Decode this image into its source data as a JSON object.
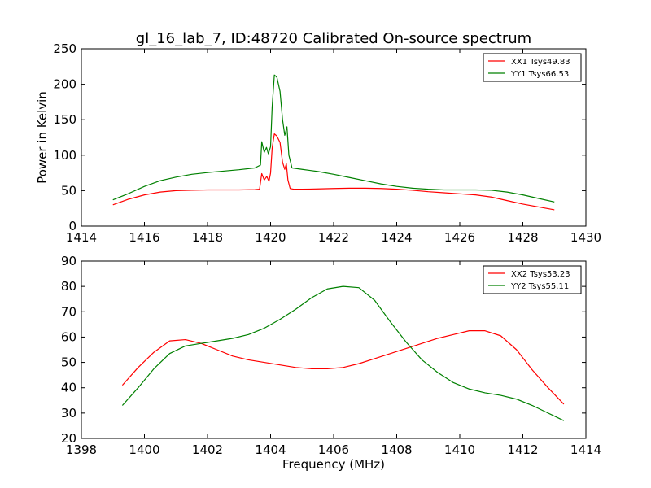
{
  "title": "gl_16_lab_7, ID:48720 Calibrated On-source spectrum",
  "chart_data": [
    {
      "type": "line",
      "title": "gl_16_lab_7, ID:48720 Calibrated On-source spectrum",
      "xlabel": "",
      "ylabel": "Power in Kelvin",
      "xlim": [
        1414,
        1430
      ],
      "ylim": [
        0,
        250
      ],
      "xticks": [
        1414,
        1416,
        1418,
        1420,
        1422,
        1424,
        1426,
        1428,
        1430
      ],
      "yticks": [
        0,
        50,
        100,
        150,
        200,
        250
      ],
      "grid": false,
      "legend_position": "top-right",
      "series": [
        {
          "name": "XX1 Tsys49.83",
          "color": "#ff0000",
          "x": [
            1415.0,
            1415.5,
            1416.0,
            1416.5,
            1417.0,
            1417.5,
            1418.0,
            1418.5,
            1419.0,
            1419.5,
            1419.65,
            1419.72,
            1419.8,
            1419.88,
            1419.95,
            1420.0,
            1420.05,
            1420.12,
            1420.2,
            1420.3,
            1420.38,
            1420.45,
            1420.5,
            1420.55,
            1420.62,
            1420.75,
            1421.0,
            1421.5,
            1422.0,
            1422.5,
            1423.0,
            1423.5,
            1424.0,
            1424.5,
            1425.0,
            1425.5,
            1426.0,
            1426.5,
            1427.0,
            1427.5,
            1428.0,
            1428.5,
            1429.0
          ],
          "y": [
            30,
            38,
            44,
            48,
            50,
            50.5,
            51,
            51,
            51,
            51.5,
            52,
            74,
            65,
            70,
            63,
            75,
            110,
            130,
            127,
            118,
            90,
            80,
            88,
            65,
            53,
            52,
            52,
            52.5,
            53,
            53.5,
            53.5,
            53,
            52,
            50.5,
            48.5,
            47,
            45.5,
            44,
            41,
            36,
            31,
            27,
            23
          ]
        },
        {
          "name": "YY1 Tsys66.53",
          "color": "#008000",
          "x": [
            1415.0,
            1415.5,
            1416.0,
            1416.5,
            1417.0,
            1417.5,
            1418.0,
            1418.5,
            1419.0,
            1419.5,
            1419.68,
            1419.72,
            1419.8,
            1419.87,
            1419.93,
            1420.0,
            1420.05,
            1420.12,
            1420.2,
            1420.3,
            1420.38,
            1420.45,
            1420.52,
            1420.58,
            1420.68,
            1421.0,
            1421.5,
            1422.0,
            1422.5,
            1423.0,
            1423.5,
            1424.0,
            1424.5,
            1425.0,
            1425.5,
            1426.0,
            1426.5,
            1427.0,
            1427.5,
            1428.0,
            1428.5,
            1429.0
          ],
          "y": [
            37,
            46,
            56,
            64,
            69,
            73,
            75.5,
            77.5,
            79.5,
            82,
            86,
            119,
            104,
            111,
            102,
            112,
            168,
            213,
            210,
            190,
            150,
            128,
            140,
            100,
            82,
            80,
            77,
            73,
            68.5,
            64,
            59.5,
            56,
            53.5,
            52,
            51,
            51,
            51,
            50.5,
            48,
            44,
            39,
            34
          ]
        }
      ]
    },
    {
      "type": "line",
      "title": "",
      "xlabel": "Frequency (MHz)",
      "ylabel": "",
      "xlim": [
        1398,
        1414
      ],
      "ylim": [
        20,
        90
      ],
      "xticks": [
        1398,
        1400,
        1402,
        1404,
        1406,
        1408,
        1410,
        1412,
        1414
      ],
      "yticks": [
        20,
        30,
        40,
        50,
        60,
        70,
        80,
        90
      ],
      "grid": false,
      "legend_position": "top-right",
      "series": [
        {
          "name": "XX2 Tsys53.23",
          "color": "#ff0000",
          "x": [
            1399.3,
            1399.8,
            1400.3,
            1400.8,
            1401.3,
            1401.8,
            1402.3,
            1402.8,
            1403.3,
            1403.8,
            1404.3,
            1404.8,
            1405.3,
            1405.8,
            1406.3,
            1406.8,
            1407.3,
            1407.8,
            1408.3,
            1408.8,
            1409.3,
            1409.8,
            1410.3,
            1410.8,
            1411.3,
            1411.8,
            1412.3,
            1412.8,
            1413.3
          ],
          "y": [
            41,
            48,
            54,
            58.5,
            59,
            57.5,
            55,
            52.5,
            51,
            50,
            49,
            48,
            47.5,
            47.5,
            48,
            49.5,
            51.5,
            53.5,
            55.5,
            57.5,
            59.5,
            61,
            62.5,
            62.5,
            60.5,
            55,
            47,
            40,
            33.5
          ]
        },
        {
          "name": "YY2 Tsys55.11",
          "color": "#008000",
          "x": [
            1399.3,
            1399.8,
            1400.3,
            1400.8,
            1401.3,
            1401.8,
            1402.3,
            1402.8,
            1403.3,
            1403.8,
            1404.3,
            1404.8,
            1405.3,
            1405.8,
            1406.3,
            1406.8,
            1407.3,
            1407.8,
            1408.3,
            1408.8,
            1409.3,
            1409.8,
            1410.3,
            1410.8,
            1411.3,
            1411.8,
            1412.3,
            1412.8,
            1413.3
          ],
          "y": [
            33,
            40,
            47.5,
            53.5,
            56.5,
            57.5,
            58.5,
            59.5,
            61,
            63.5,
            67,
            71,
            75.5,
            79,
            80,
            79.5,
            74.5,
            66,
            58,
            51,
            46,
            42,
            39.5,
            38,
            37,
            35.5,
            33,
            30,
            27
          ]
        }
      ]
    }
  ]
}
